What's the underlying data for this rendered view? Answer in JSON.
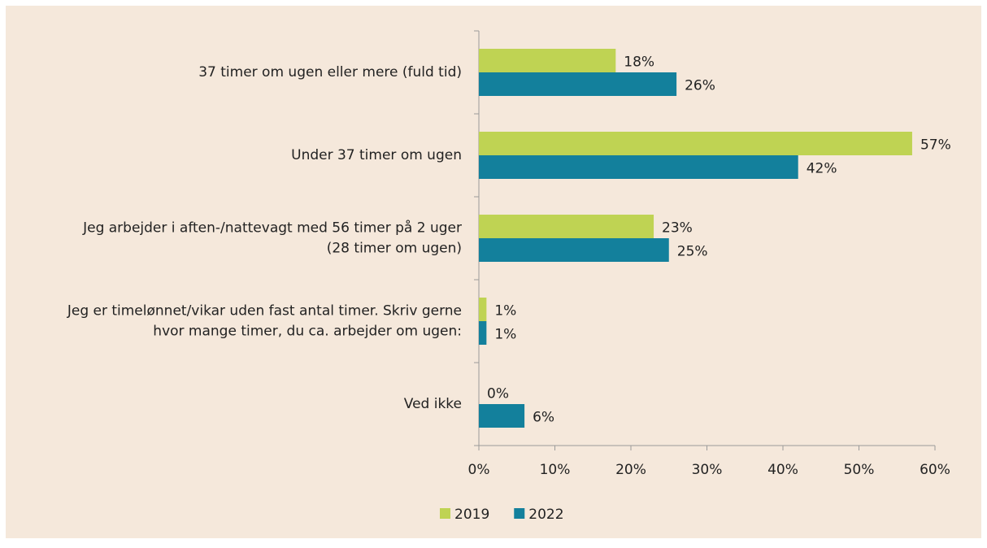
{
  "chart_data": {
    "type": "hbar",
    "categories": [
      "37 timer om ugen eller mere (fuld tid)",
      "Under 37 timer om ugen",
      "Jeg arbejder i aften-/nattevagt med 56 timer på 2 uger\n(28 timer om ugen)",
      "Jeg er timelønnet/vikar uden fast antal timer. Skriv gerne\nhvor mange timer, du ca. arbejder om ugen:",
      "Ved ikke"
    ],
    "series": [
      {
        "name": "2019",
        "color": "#bfd353",
        "values": [
          18,
          57,
          23,
          1,
          0
        ],
        "value_labels": [
          "18%",
          "57%",
          "23%",
          "1%",
          "0%"
        ]
      },
      {
        "name": "2022",
        "color": "#13809c",
        "values": [
          26,
          42,
          25,
          1,
          6
        ],
        "value_labels": [
          "26%",
          "42%",
          "25%",
          "1%",
          "6%"
        ]
      }
    ],
    "xlim": [
      0,
      60
    ],
    "xticks": [
      {
        "value": 0,
        "label": "0%"
      },
      {
        "value": 10,
        "label": "10%"
      },
      {
        "value": 20,
        "label": "20%"
      },
      {
        "value": 30,
        "label": "30%"
      },
      {
        "value": 40,
        "label": "40%"
      },
      {
        "value": 50,
        "label": "50%"
      },
      {
        "value": 60,
        "label": "60%"
      }
    ],
    "legend": "bottom"
  }
}
